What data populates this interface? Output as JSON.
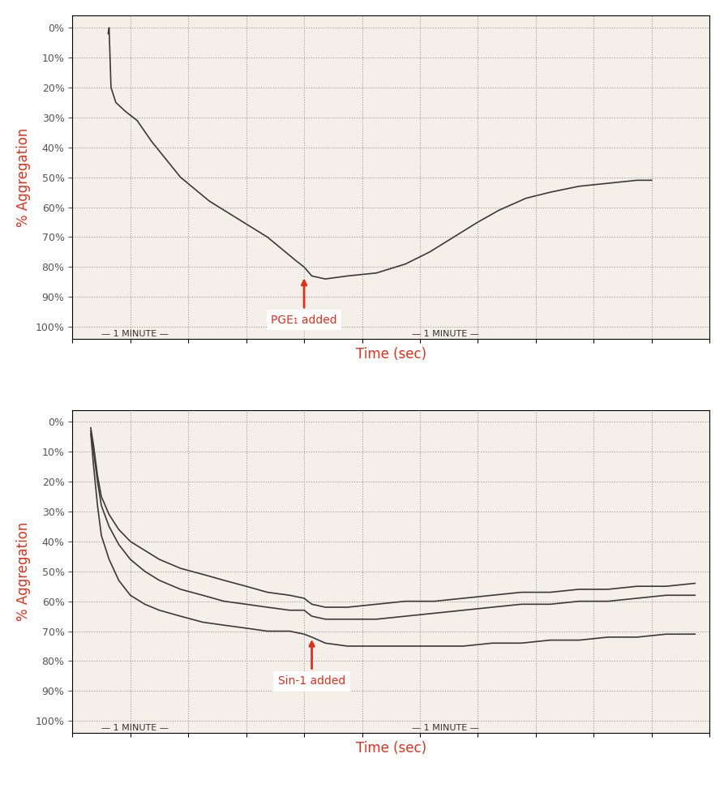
{
  "chart_data": [
    {
      "type": "line",
      "x_label": "Time (sec)",
      "y_label": "% Aggregation",
      "xlim": [
        0,
        660
      ],
      "xticks": [
        0,
        60,
        120,
        180,
        240,
        300,
        360,
        420,
        480,
        540,
        600,
        660
      ],
      "ylim": [
        104,
        -4
      ],
      "yticks": [
        {
          "value": 0,
          "label": "0%"
        },
        {
          "value": 10,
          "label": "10%"
        },
        {
          "value": 20,
          "label": "20%"
        },
        {
          "value": 30,
          "label": "30%"
        },
        {
          "value": 40,
          "label": "40%"
        },
        {
          "value": 50,
          "label": "50%"
        },
        {
          "value": 60,
          "label": "60%"
        },
        {
          "value": 70,
          "label": "70%"
        },
        {
          "value": 80,
          "label": "80%"
        },
        {
          "value": 90,
          "label": "90%"
        },
        {
          "value": 100,
          "label": "100%"
        }
      ],
      "grid": true,
      "tick_labels": "y",
      "x": [
        37,
        38,
        40,
        45,
        55,
        67,
        82,
        97,
        112,
        127,
        142,
        157,
        172,
        187,
        202,
        217,
        232,
        240,
        248,
        262,
        285,
        315,
        345,
        370,
        390,
        420,
        442,
        470,
        495,
        525,
        555,
        585,
        600
      ],
      "series": [
        {
          "color": "#3a3a3a",
          "values": [
            2,
            0,
            20,
            25,
            28,
            31,
            38,
            44,
            50,
            54,
            58,
            61,
            64,
            67,
            70,
            74,
            78,
            80,
            83,
            84,
            83,
            82,
            79,
            75,
            71,
            65,
            61,
            57,
            55,
            53,
            52,
            51,
            51
          ]
        }
      ],
      "annotations": [
        {
          "text": "PGE₁ added",
          "x": 240,
          "y": 83,
          "arrow": true
        },
        {
          "text": "— 1 MINUTE —",
          "x": 30,
          "y": 102.5,
          "arrow": false
        },
        {
          "text": "— 1 MINUTE —",
          "x": 352,
          "y": 102.5,
          "arrow": false
        }
      ]
    },
    {
      "type": "line",
      "x_label": "Time (sec)",
      "y_label": "% Aggregation",
      "xlim": [
        0,
        660
      ],
      "xticks": [
        0,
        60,
        120,
        180,
        240,
        300,
        360,
        420,
        480,
        540,
        600,
        660
      ],
      "ylim": [
        104,
        -4
      ],
      "yticks": [
        {
          "value": 0,
          "label": "0%"
        },
        {
          "value": 10,
          "label": "10%"
        },
        {
          "value": 20,
          "label": "20%"
        },
        {
          "value": 30,
          "label": "30%"
        },
        {
          "value": 40,
          "label": "40%"
        },
        {
          "value": 50,
          "label": "50%"
        },
        {
          "value": 60,
          "label": "60%"
        },
        {
          "value": 70,
          "label": "70%"
        },
        {
          "value": 80,
          "label": "80%"
        },
        {
          "value": 90,
          "label": "90%"
        },
        {
          "value": 100,
          "label": "100%"
        }
      ],
      "grid": true,
      "tick_labels": "y",
      "x": [
        19,
        22,
        26,
        30,
        38,
        48,
        60,
        75,
        90,
        112,
        135,
        157,
        180,
        202,
        225,
        240,
        248,
        262,
        285,
        315,
        345,
        375,
        405,
        435,
        465,
        495,
        525,
        555,
        585,
        615,
        645
      ],
      "series": [
        {
          "color": "#3a3a3a",
          "values": [
            2,
            8,
            18,
            25,
            31,
            36,
            40,
            43,
            46,
            49,
            51,
            53,
            55,
            57,
            58,
            59,
            61,
            62,
            62,
            61,
            60,
            60,
            59,
            58,
            57,
            57,
            56,
            56,
            55,
            55,
            54
          ]
        },
        {
          "color": "#3a3a3a",
          "values": [
            3,
            10,
            20,
            28,
            35,
            41,
            46,
            50,
            53,
            56,
            58,
            60,
            61,
            62,
            63,
            63,
            65,
            66,
            66,
            66,
            65,
            64,
            63,
            62,
            61,
            61,
            60,
            60,
            59,
            58,
            58
          ]
        },
        {
          "color": "#3a3a3a",
          "values": [
            4,
            15,
            28,
            38,
            46,
            53,
            58,
            61,
            63,
            65,
            67,
            68,
            69,
            70,
            70,
            71,
            72,
            74,
            75,
            75,
            75,
            75,
            75,
            74,
            74,
            73,
            73,
            72,
            72,
            71,
            71
          ]
        }
      ],
      "annotations": [
        {
          "text": "Sin-1 added",
          "x": 248,
          "y": 72,
          "arrow": true
        },
        {
          "text": "— 1 MINUTE —",
          "x": 30,
          "y": 102.5,
          "arrow": false
        },
        {
          "text": "— 1 MINUTE —",
          "x": 352,
          "y": 102.5,
          "arrow": false
        }
      ]
    }
  ]
}
